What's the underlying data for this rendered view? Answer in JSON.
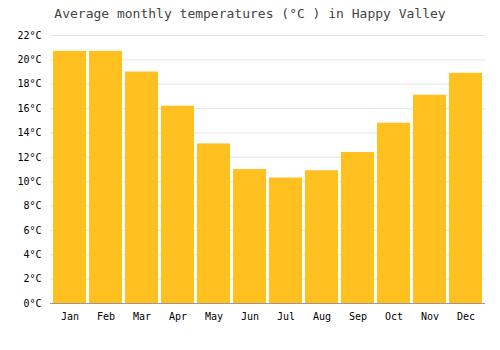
{
  "chart_data": {
    "type": "bar",
    "title": "Average monthly temperatures (°C ) in Happy Valley",
    "categories": [
      "Jan",
      "Feb",
      "Mar",
      "Apr",
      "May",
      "Jun",
      "Jul",
      "Aug",
      "Sep",
      "Oct",
      "Nov",
      "Dec"
    ],
    "values": [
      20.7,
      20.7,
      19.0,
      16.2,
      13.1,
      11.0,
      10.3,
      10.9,
      12.4,
      14.8,
      17.1,
      18.9
    ],
    "color": "#FFC020",
    "ylim": [
      0,
      22
    ],
    "yticks": [
      {
        "value": 0,
        "label": "0°C"
      },
      {
        "value": 2,
        "label": "2°C"
      },
      {
        "value": 4,
        "label": "4°C"
      },
      {
        "value": 6,
        "label": "6°C"
      },
      {
        "value": 8,
        "label": "8°C"
      },
      {
        "value": 10,
        "label": "10°C"
      },
      {
        "value": 12,
        "label": "12°C"
      },
      {
        "value": 14,
        "label": "14°C"
      },
      {
        "value": 16,
        "label": "16°C"
      },
      {
        "value": 18,
        "label": "18°C"
      },
      {
        "value": 20,
        "label": "20°C"
      },
      {
        "value": 22,
        "label": "22°C"
      }
    ],
    "grid": true
  }
}
